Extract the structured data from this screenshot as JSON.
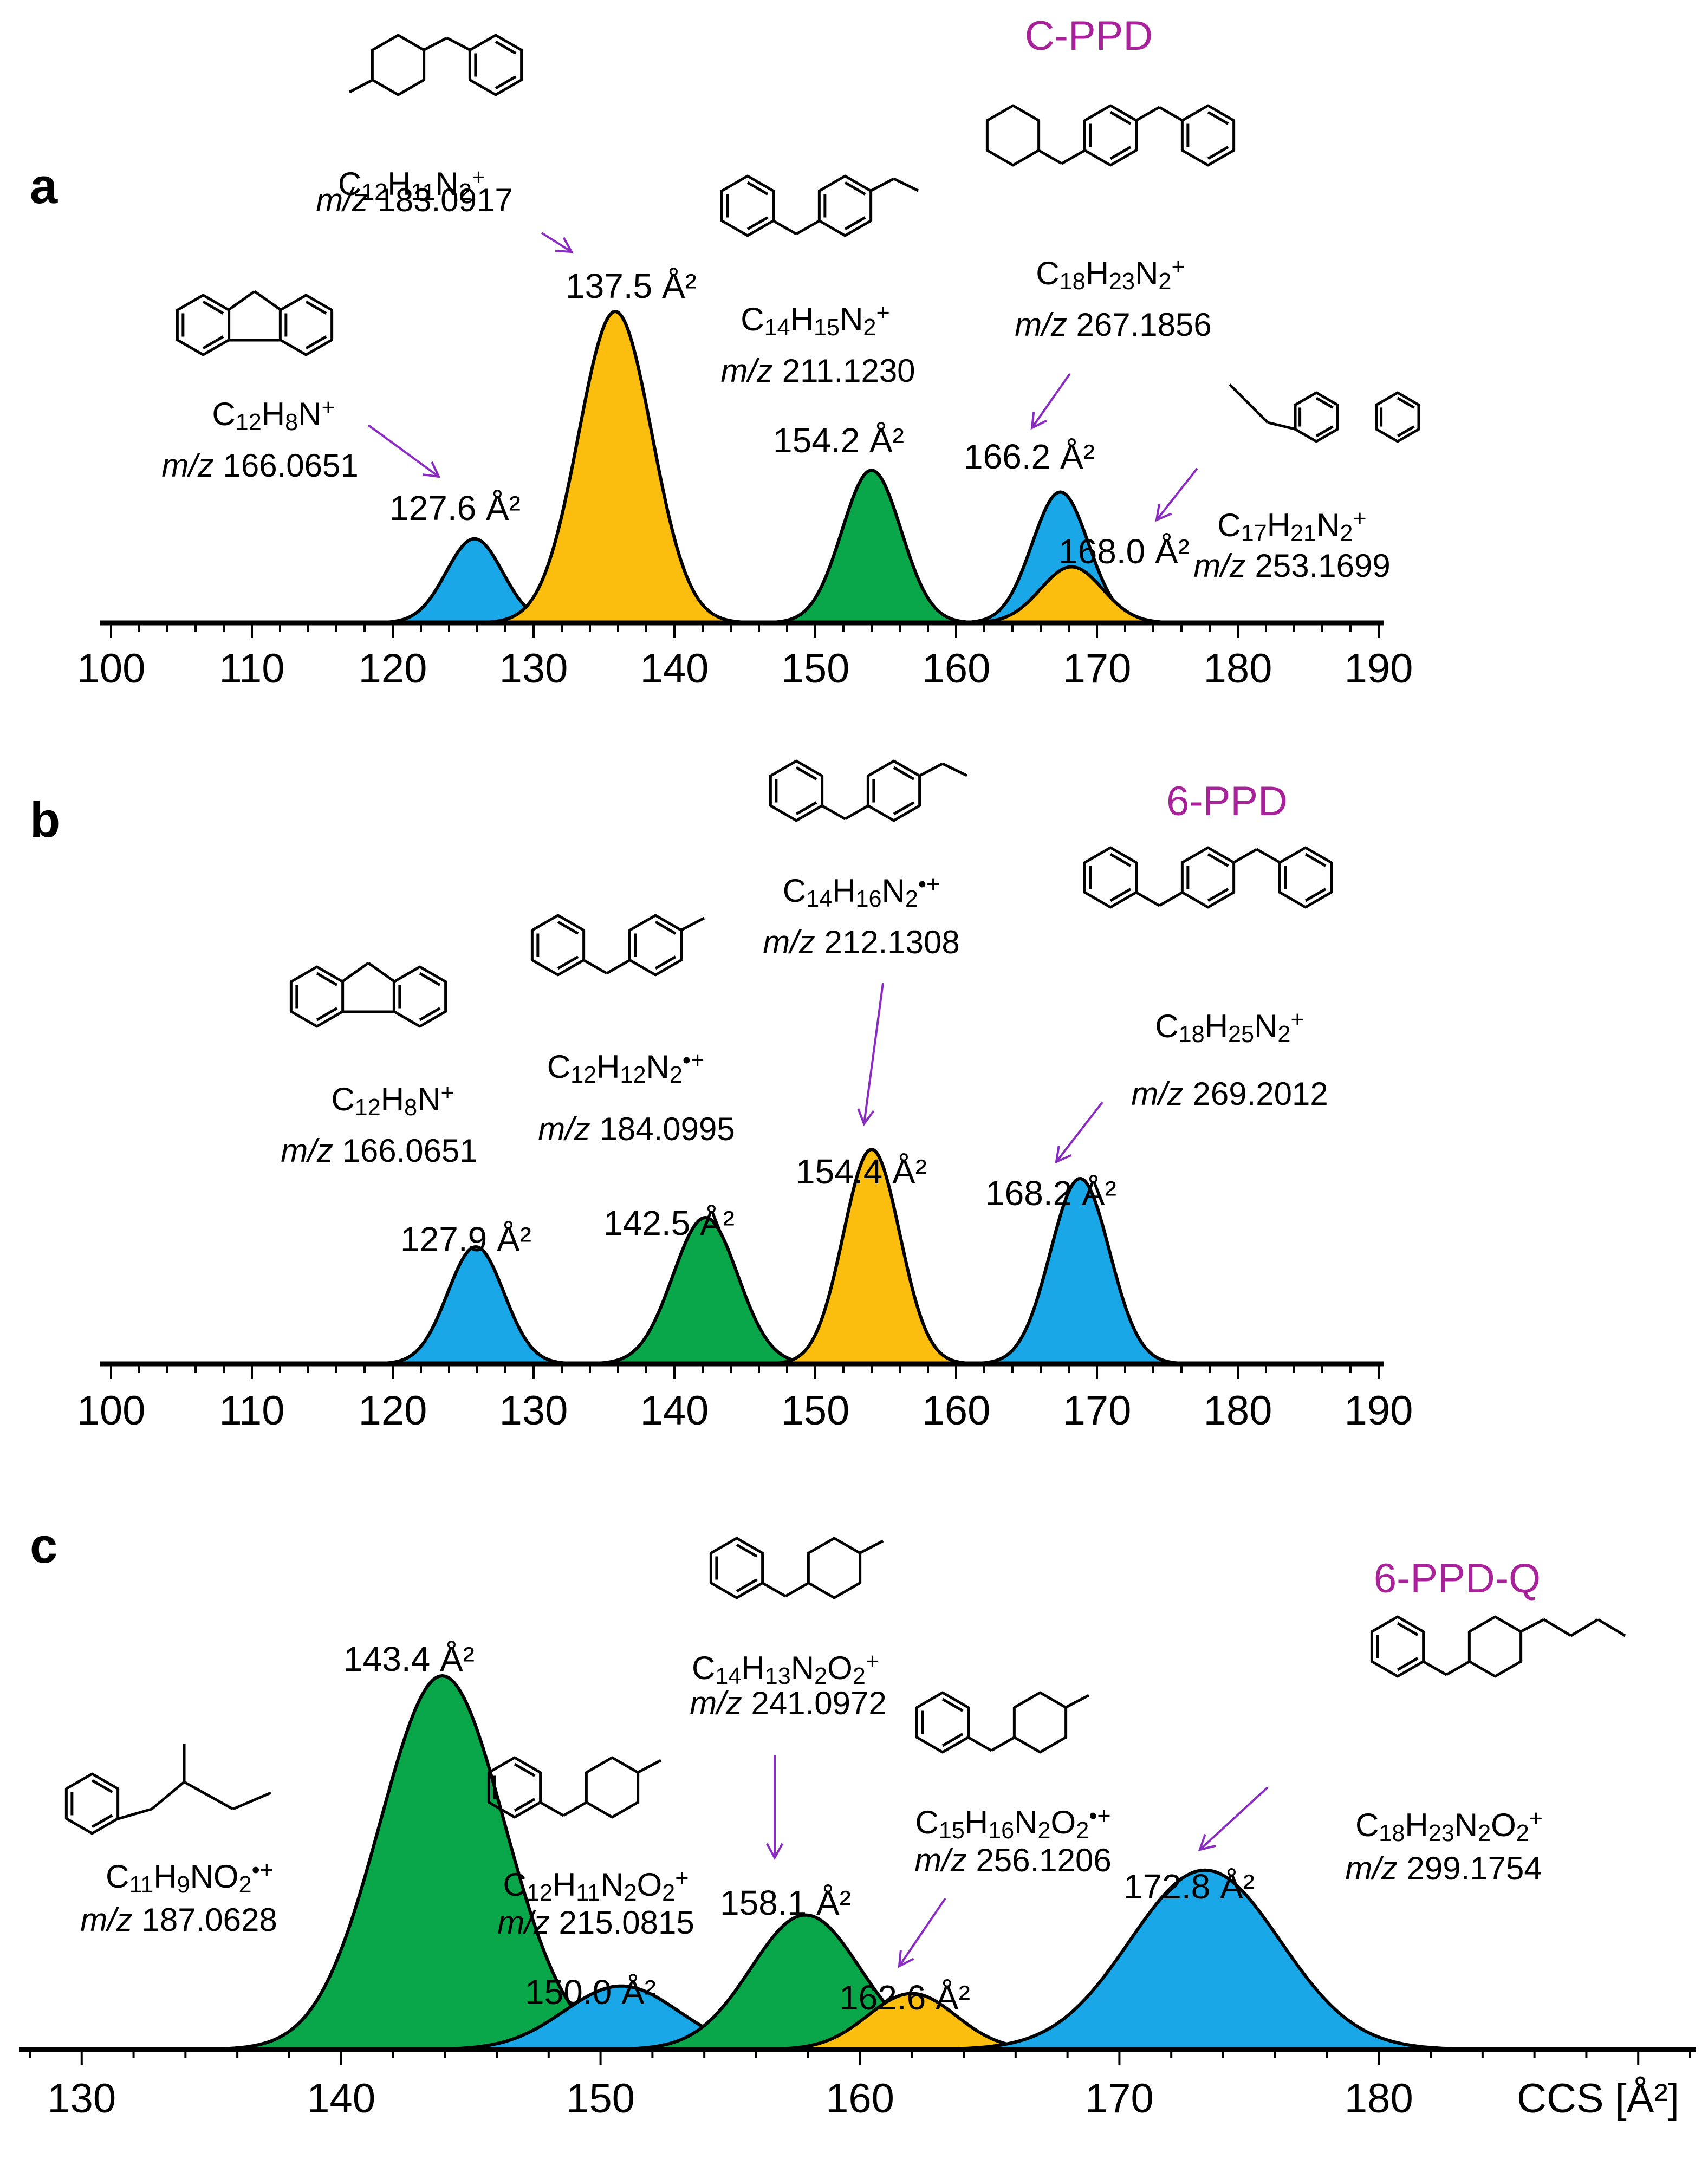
{
  "colors": {
    "blue": "#1aa7e8",
    "orange": "#fbbd0e",
    "green": "#0aa64a",
    "compound": "#a8229a",
    "arrow": "#8a2bc2"
  },
  "chart_data": [
    {
      "type": "area",
      "panel": "a",
      "compound": "C-PPD",
      "xlim": [
        100,
        190
      ],
      "ticks": [
        "100",
        "110",
        "120",
        "130",
        "140",
        "150",
        "160",
        "170",
        "180",
        "190"
      ],
      "peaks": [
        {
          "ccs": 125.8,
          "height": 0.27,
          "width": 2.0,
          "color": "blue",
          "label": "127.6 Å²",
          "formula": {
            "parts": [
              [
                "C",
                ""
              ],
              [
                "12",
                "sub"
              ],
              [
                "H",
                ""
              ],
              [
                "8",
                "sub"
              ],
              [
                "N",
                ""
              ],
              [
                "+",
                "sup"
              ]
            ]
          },
          "mz": "166.0651"
        },
        {
          "ccs": 135.8,
          "height": 1.0,
          "width": 2.6,
          "color": "orange",
          "label": "137.5 Å²",
          "formula": {
            "parts": [
              [
                "C",
                ""
              ],
              [
                "12",
                "sub"
              ],
              [
                "H",
                ""
              ],
              [
                "11",
                "sub"
              ],
              [
                "N",
                ""
              ],
              [
                "2",
                "sub"
              ],
              [
                "+",
                "sup"
              ]
            ]
          },
          "mz": "183.0917"
        },
        {
          "ccs": 154.0,
          "height": 0.49,
          "width": 2.1,
          "color": "green",
          "label": "154.2 Å²",
          "formula": {
            "parts": [
              [
                "C",
                ""
              ],
              [
                "14",
                "sub"
              ],
              [
                "H",
                ""
              ],
              [
                "15",
                "sub"
              ],
              [
                "N",
                ""
              ],
              [
                "2",
                "sub"
              ],
              [
                "+",
                "sup"
              ]
            ]
          },
          "mz": "211.1230"
        },
        {
          "ccs": 167.4,
          "height": 0.42,
          "width": 2.0,
          "color": "blue",
          "label": "166.2 Å²",
          "formula": {
            "parts": [
              [
                "C",
                ""
              ],
              [
                "18",
                "sub"
              ],
              [
                "H",
                ""
              ],
              [
                "23",
                "sub"
              ],
              [
                "N",
                ""
              ],
              [
                "2",
                "sub"
              ],
              [
                "+",
                "sup"
              ]
            ]
          },
          "mz": "267.1856"
        },
        {
          "ccs": 168.2,
          "height": 0.18,
          "width": 2.2,
          "color": "orange",
          "label": "168.0 Å²",
          "formula": {
            "parts": [
              [
                "C",
                ""
              ],
              [
                "17",
                "sub"
              ],
              [
                "H",
                ""
              ],
              [
                "21",
                "sub"
              ],
              [
                "N",
                ""
              ],
              [
                "2",
                "sub"
              ],
              [
                "+",
                "sup"
              ]
            ]
          },
          "mz": "253.1699"
        }
      ]
    },
    {
      "type": "area",
      "panel": "b",
      "compound": "6-PPD",
      "xlim": [
        100,
        190
      ],
      "ticks": [
        "100",
        "110",
        "120",
        "130",
        "140",
        "150",
        "160",
        "170",
        "180",
        "190"
      ],
      "peaks": [
        {
          "ccs": 125.9,
          "height": 0.36,
          "width": 2.0,
          "color": "blue",
          "label": "127.9 Å²",
          "formula": {
            "parts": [
              [
                "C",
                ""
              ],
              [
                "12",
                "sub"
              ],
              [
                "H",
                ""
              ],
              [
                "8",
                "sub"
              ],
              [
                "N",
                ""
              ],
              [
                "+",
                "sup"
              ]
            ]
          },
          "mz": "166.0651"
        },
        {
          "ccs": 142.2,
          "height": 0.45,
          "width": 2.3,
          "color": "green",
          "label": "142.5 Å²",
          "formula": {
            "parts": [
              [
                "C",
                ""
              ],
              [
                "12",
                "sub"
              ],
              [
                "H",
                ""
              ],
              [
                "12",
                "sub"
              ],
              [
                "N",
                ""
              ],
              [
                "2",
                "sub"
              ],
              [
                "•+",
                "sup"
              ]
            ]
          },
          "mz": "184.0995"
        },
        {
          "ccs": 154.0,
          "height": 0.66,
          "width": 2.0,
          "color": "orange",
          "label": "154.4 Å²",
          "formula": {
            "parts": [
              [
                "C",
                ""
              ],
              [
                "14",
                "sub"
              ],
              [
                "H",
                ""
              ],
              [
                "16",
                "sub"
              ],
              [
                "N",
                ""
              ],
              [
                "2",
                "sub"
              ],
              [
                "•+",
                "sup"
              ]
            ]
          },
          "mz": "212.1308"
        },
        {
          "ccs": 168.8,
          "height": 0.57,
          "width": 2.1,
          "color": "blue",
          "label": "168.2 Å²",
          "formula": {
            "parts": [
              [
                "C",
                ""
              ],
              [
                "18",
                "sub"
              ],
              [
                "H",
                ""
              ],
              [
                "25",
                "sub"
              ],
              [
                "N",
                ""
              ],
              [
                "2",
                "sub"
              ],
              [
                "+",
                "sup"
              ]
            ]
          },
          "mz": "269.2012"
        }
      ]
    },
    {
      "type": "area",
      "panel": "c",
      "compound": "6-PPD-Q",
      "xlim": [
        128,
        192
      ],
      "xlabel": "CCS [Å²]",
      "ticks": [
        "130",
        "140",
        "150",
        "160",
        "170",
        "180"
      ],
      "peaks": [
        {
          "ccs": 143.9,
          "height": 1.0,
          "width": 2.4,
          "color": "green",
          "label": "143.4 Å²",
          "formula": {
            "parts": [
              [
                "C",
                ""
              ],
              [
                "11",
                "sub"
              ],
              [
                "H",
                ""
              ],
              [
                "9",
                "sub"
              ],
              [
                "NO",
                ""
              ],
              [
                "2",
                "sub"
              ],
              [
                "•+",
                "sup"
              ]
            ]
          },
          "mz": "187.0628"
        },
        {
          "ccs": 150.8,
          "height": 0.17,
          "width": 2.2,
          "color": "blue",
          "label": "150.0 Å²",
          "formula": {
            "parts": [
              [
                "C",
                ""
              ],
              [
                "12",
                "sub"
              ],
              [
                "H",
                ""
              ],
              [
                "11",
                "sub"
              ],
              [
                "N",
                ""
              ],
              [
                "2",
                "sub"
              ],
              [
                "O",
                ""
              ],
              [
                "2",
                "sub"
              ],
              [
                "+",
                "sup"
              ]
            ]
          },
          "mz": "215.0815"
        },
        {
          "ccs": 157.9,
          "height": 0.36,
          "width": 2.1,
          "color": "green",
          "label": "158.1 Å²",
          "formula": {
            "parts": [
              [
                "C",
                ""
              ],
              [
                "14",
                "sub"
              ],
              [
                "H",
                ""
              ],
              [
                "13",
                "sub"
              ],
              [
                "N",
                ""
              ],
              [
                "2",
                "sub"
              ],
              [
                "O",
                ""
              ],
              [
                "2",
                "sub"
              ],
              [
                "+",
                "sup"
              ]
            ]
          },
          "mz": "241.0972"
        },
        {
          "ccs": 162.0,
          "height": 0.15,
          "width": 1.7,
          "color": "orange",
          "label": "162.6 Å²",
          "formula": {
            "parts": [
              [
                "C",
                ""
              ],
              [
                "15",
                "sub"
              ],
              [
                "H",
                ""
              ],
              [
                "16",
                "sub"
              ],
              [
                "N",
                ""
              ],
              [
                "2",
                "sub"
              ],
              [
                "O",
                ""
              ],
              [
                "2",
                "sub"
              ],
              [
                "•+",
                "sup"
              ]
            ]
          },
          "mz": "256.1206"
        },
        {
          "ccs": 173.3,
          "height": 0.48,
          "width": 2.9,
          "color": "blue",
          "label": "172.8 Å²",
          "formula": {
            "parts": [
              [
                "C",
                ""
              ],
              [
                "18",
                "sub"
              ],
              [
                "H",
                ""
              ],
              [
                "23",
                "sub"
              ],
              [
                "N",
                ""
              ],
              [
                "2",
                "sub"
              ],
              [
                "O",
                ""
              ],
              [
                "2",
                "sub"
              ],
              [
                "+",
                "sup"
              ]
            ]
          },
          "mz": "299.1754"
        }
      ]
    }
  ]
}
